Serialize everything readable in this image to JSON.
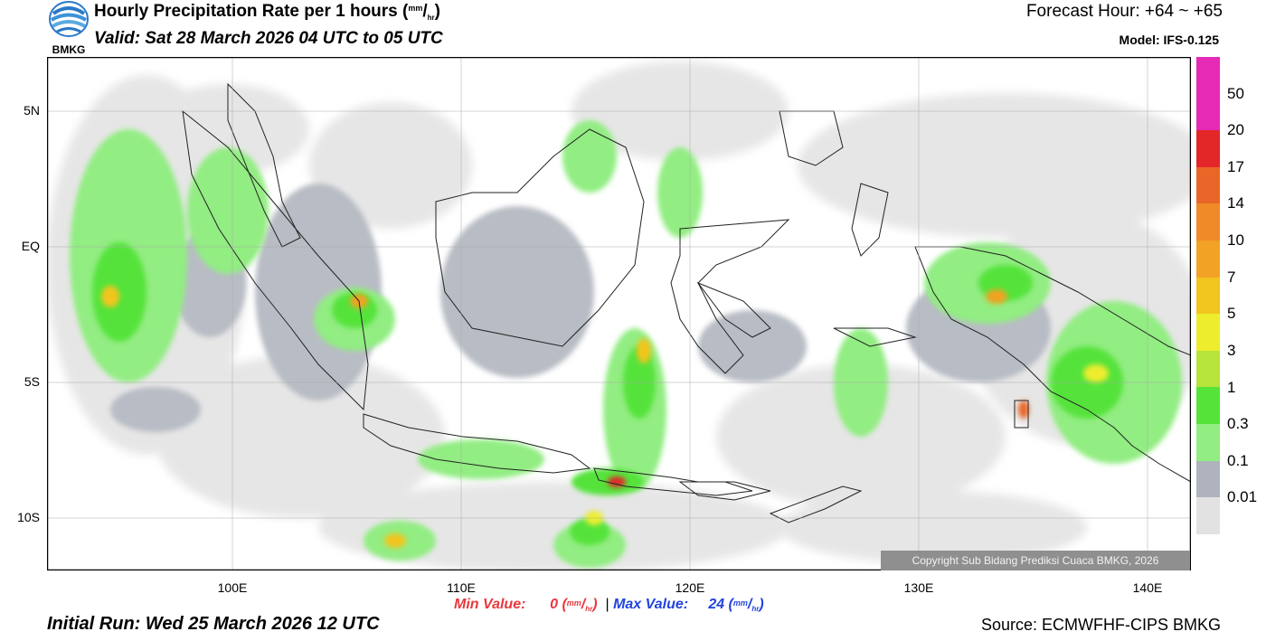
{
  "header": {
    "logo_text": "BMKG",
    "title_main": "Hourly Precipitation Rate per 1 hours (",
    "title_unit_num": "mm",
    "title_unit_sep": "/",
    "title_unit_den": "hr",
    "title_close": ")",
    "valid": "Valid: Sat 28 March 2026 04 UTC to 05 UTC",
    "forecast_hour": "Forecast Hour: +64 ~ +65",
    "model": "Model: IFS-0.125"
  },
  "map": {
    "lat_labels": [
      "5N",
      "EQ",
      "5S",
      "10S"
    ],
    "lon_labels": [
      "100E",
      "110E",
      "120E",
      "130E",
      "140E"
    ],
    "copyright": "Copyright Sub Bidang Prediksi Cuaca BMKG, 2026",
    "bg_colors": {
      "none": "#ffffff",
      "trace": "#e6e6e6",
      "light": "#b8bcc4"
    }
  },
  "colorbar": {
    "ticks": [
      "50",
      "20",
      "17",
      "14",
      "10",
      "7",
      "5",
      "3",
      "1",
      "0.3",
      "0.1",
      "0.01"
    ],
    "colors": [
      "#e52bb5",
      "#e32628",
      "#ea6628",
      "#f08a28",
      "#f2a224",
      "#f2c51f",
      "#eded2d",
      "#b6e43a",
      "#55e33a",
      "#92ed82",
      "#aeb3bd",
      "#e2e2e2"
    ]
  },
  "stats": {
    "min_label": "Min Value:",
    "min_value": "0",
    "max_label": "Max Value:",
    "max_value": "24",
    "unit_num": "mm",
    "unit_sep": "/",
    "unit_den": "hr",
    "divider": "|"
  },
  "footer": {
    "initial_run": "Initial Run: Wed 25 March 2026 12 UTC",
    "source": "Source: ECMWFHF-CIPS BMKG"
  }
}
